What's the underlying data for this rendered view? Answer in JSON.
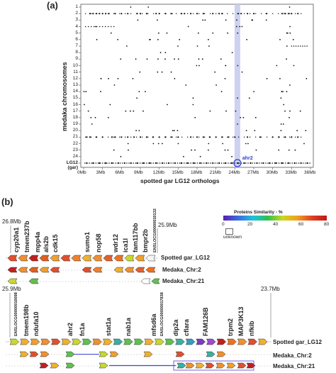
{
  "panel_a": {
    "label": "(a)",
    "ylabel": "medaka chromosomes",
    "xlabel": "spotted gar LG12 orthologs",
    "y_ticks": [
      "1",
      "2",
      "3",
      "4",
      "5",
      "6",
      "7",
      "8",
      "9",
      "10",
      "11",
      "12",
      "13",
      "14",
      "15",
      "16",
      "17",
      "18",
      "19",
      "20",
      "21",
      "22",
      "23",
      "24",
      "LG12",
      "(gar)"
    ],
    "x_ticks": [
      "0Mb",
      "3Mb",
      "6Mb",
      "9Mb",
      "12Mb",
      "15Mb",
      "18Mb",
      "21Mb",
      "24Mb",
      "27Mb",
      "30Mb",
      "33Mb",
      "36Mb"
    ],
    "highlight_label": "ahr2",
    "colors": {
      "highlight": "#c8cdf0",
      "circle": "#2a3fd0",
      "dots": "#111111"
    }
  },
  "chart_data": {
    "type": "scatter",
    "xlabel": "spotted gar LG12 orthologs",
    "ylabel": "medaka chromosomes",
    "xlim": [
      0,
      36
    ],
    "x_unit": "Mb",
    "rows": [
      "1",
      "2",
      "3",
      "4",
      "5",
      "6",
      "7",
      "8",
      "9",
      "10",
      "11",
      "12",
      "13",
      "14",
      "15",
      "16",
      "17",
      "18",
      "19",
      "20",
      "21",
      "22",
      "23",
      "24",
      "LG12"
    ],
    "series": [
      {
        "row": "2",
        "x": [
          1.0,
          1.5,
          2.0,
          2.5,
          3.0,
          3.5,
          4.0,
          5.0,
          6.0,
          7.0,
          8.5,
          9.0,
          10.0,
          11.5,
          12.0,
          13.0,
          14.0,
          15.5,
          16.0,
          17.0,
          18.0,
          19.0,
          20.5,
          21.5,
          22.0,
          24.5,
          25.0,
          26.0,
          27.0,
          29.0,
          31.5,
          32.0,
          32.5,
          33.0,
          34.0
        ]
      },
      {
        "row": "21",
        "x": [
          0.5,
          1.0,
          2.0,
          3.0,
          4.5,
          5.0,
          6.0,
          7.0,
          8.0,
          9.0,
          10.0,
          11.0,
          12.0,
          13.0,
          14.0,
          15.0,
          17.0,
          18.0,
          19.0,
          20.0,
          21.0,
          22.0,
          23.0,
          24.0,
          26.0,
          28.0,
          30.0,
          31.0,
          32.0,
          33.0,
          34.0
        ]
      },
      {
        "row": "LG12",
        "x": [
          0.5,
          1.5,
          2.5,
          3.5,
          4.5,
          5.5,
          6.5,
          7.5,
          8.5,
          9.5,
          10.5,
          11.5,
          12.5,
          13.5,
          14.5,
          15.5,
          16.5,
          17.5,
          18.5,
          19.5,
          20.5,
          21.5,
          22.5,
          23.5,
          24.5,
          25.5,
          26.5,
          27.5,
          28.5,
          29.5,
          30.5,
          31.5,
          32.5,
          33.5,
          34.5,
          35.5
        ]
      }
    ],
    "highlight_x": 24.4,
    "annotation": "ahr2"
  },
  "panel_b": {
    "label": "(b)",
    "legend": {
      "title": "Proteins Similarity - %",
      "ticks": [
        "0",
        "20",
        "40",
        "60",
        "80"
      ],
      "unknown": "unknown"
    },
    "block1": {
      "start": "26.8Mb",
      "end": "25.9Mb",
      "genes": [
        "cyp20a1",
        "tmem237b",
        "mpp4a",
        "als2b",
        "cdk15",
        "sumo1",
        "nop58",
        "wdr12",
        "ica1l",
        "fam117bb",
        "bmpr2b",
        "ENSLOCG00000010132"
      ],
      "rows": [
        "Spotted gar_LG12",
        "Medaka_Chr:2",
        "Medaka_Chr:21"
      ]
    },
    "block2": {
      "start": "25.9Mb",
      "end": "23.7Mb",
      "genes": [
        "ENSLOCG00000010098",
        "tmem198b",
        "ndufa10",
        "ahr2",
        "fn1a",
        "stat1a",
        "nab1a",
        "mfsd6a",
        "ENSLOCG00000017838",
        "dip2a",
        "cflara",
        "FAM126B",
        "trpm2",
        "MAP3K13",
        "nfkib"
      ],
      "rows": [
        "Spotted gar_LG12",
        "Medaka_Chr:2",
        "Medaka_Chr:21"
      ]
    }
  }
}
